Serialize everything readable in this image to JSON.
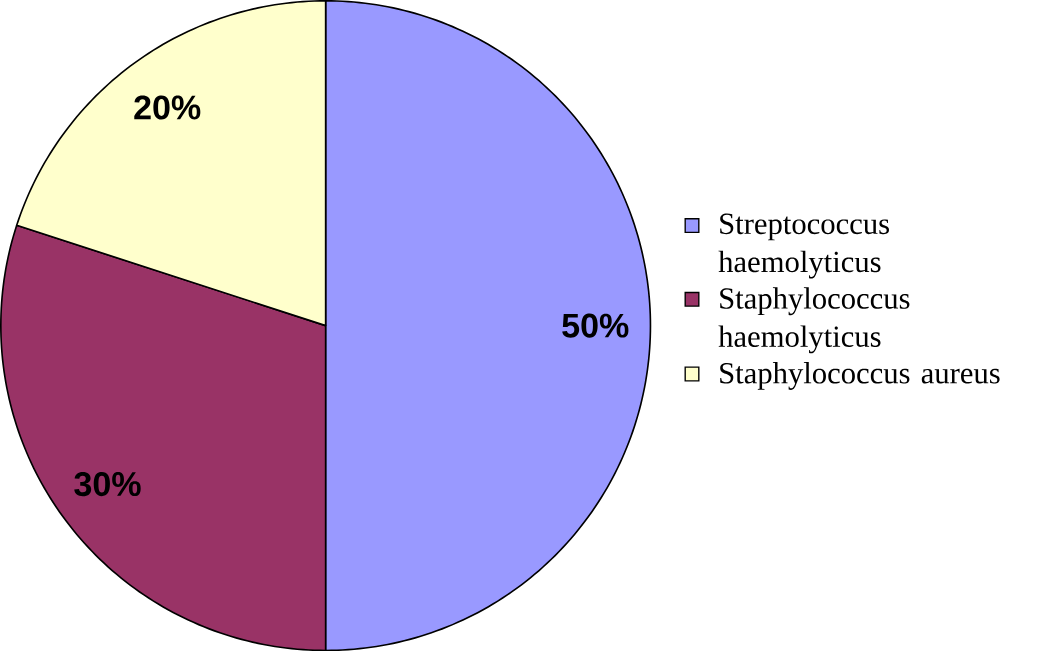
{
  "chart_data": {
    "type": "pie",
    "categories": [
      "Streptococcus haemolyticus",
      "Staphylococcus haemolyticus",
      "Staphylococcus aureus"
    ],
    "values": [
      50,
      30,
      20
    ],
    "colors": [
      "#9999ff",
      "#993366",
      "#ffffcc"
    ],
    "value_labels": [
      "50%",
      "30%",
      "20%"
    ],
    "legend": "right"
  }
}
